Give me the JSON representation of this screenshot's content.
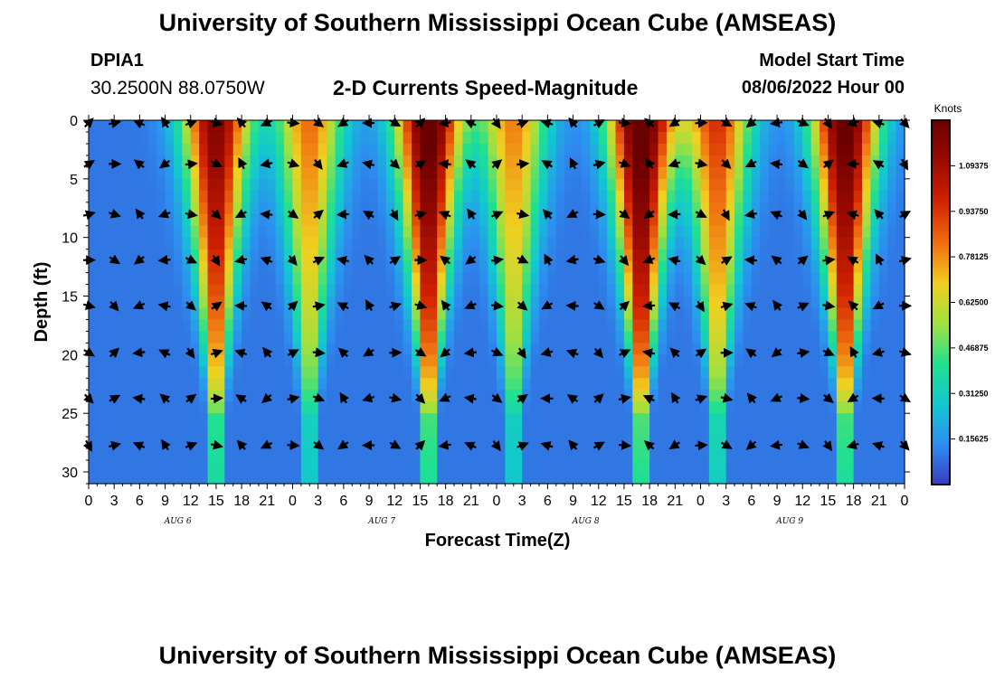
{
  "header": {
    "title": "University of Southern Mississippi Ocean Cube (AMSEAS)",
    "station": "DPIA1",
    "location": "30.2500N  88.0750W",
    "subtitle": "2-D Currents Speed-Magnitude",
    "model_start_label": "Model Start Time",
    "model_start_value": "08/06/2022 Hour 00"
  },
  "footer": {
    "title": "University of Southern Mississippi Ocean Cube (AMSEAS)"
  },
  "chart_data": {
    "type": "heatmap",
    "title": "2-D Currents Speed-Magnitude",
    "xlabel": "Forecast Time(Z)",
    "ylabel": "Depth (ft)",
    "y_ticks": [
      "0",
      "5",
      "10",
      "15",
      "20",
      "25",
      "30"
    ],
    "ylim": [
      0,
      31
    ],
    "x_tick_labels": [
      "0",
      "3",
      "6",
      "9",
      "12",
      "15",
      "18",
      "21",
      "0",
      "3",
      "6",
      "9",
      "12",
      "15",
      "18",
      "21",
      "0",
      "3",
      "6",
      "9",
      "12",
      "15",
      "18",
      "21",
      "0",
      "3",
      "6",
      "9",
      "12",
      "15",
      "18",
      "21",
      "0"
    ],
    "day_labels": [
      "AUG 6",
      "AUG 7",
      "AUG 8",
      "AUG 9"
    ],
    "xlim_hours": [
      0,
      96
    ],
    "colorbar": {
      "unit": "Knots",
      "ticks": [
        "0.15625",
        "0.31250",
        "0.46875",
        "0.62500",
        "0.78125",
        "0.93750",
        "1.09375"
      ],
      "range": [
        0,
        1.25
      ]
    },
    "speed_peaks": [
      {
        "hour": 15,
        "amp": 1.1
      },
      {
        "hour": 26,
        "amp": 0.75
      },
      {
        "hour": 40,
        "amp": 1.22
      },
      {
        "hour": 50,
        "amp": 0.72
      },
      {
        "hour": 65,
        "amp": 1.25
      },
      {
        "hour": 74,
        "amp": 0.85
      },
      {
        "hour": 89,
        "amp": 1.2
      }
    ],
    "vector_depths_ft": [
      0,
      3.5,
      7.8,
      11.7,
      15.6,
      19.6,
      23.5,
      27.5
    ]
  },
  "colors": {
    "scale": [
      "#3a3cc0",
      "#2d8ef0",
      "#12c8d0",
      "#20e090",
      "#a0e040",
      "#f0d020",
      "#f07010",
      "#d02000",
      "#9a0a00",
      "#6b0000"
    ]
  }
}
